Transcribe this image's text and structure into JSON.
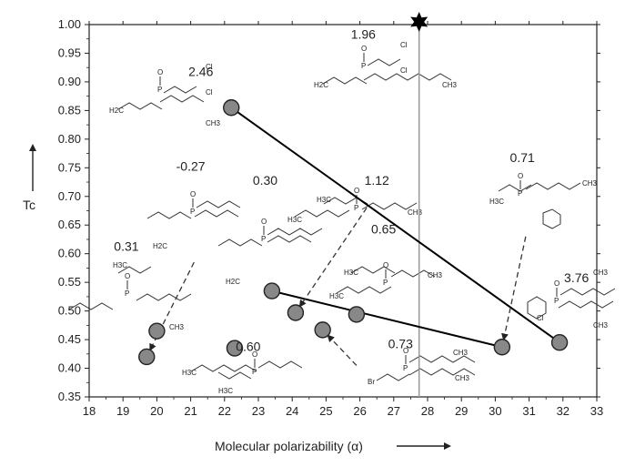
{
  "chart_data": {
    "type": "scatter",
    "xlabel": "Molecular polarizability (α)",
    "ylabel": "Tc",
    "xlim": [
      18,
      33
    ],
    "ylim": [
      0.35,
      1.0
    ],
    "xticks": [
      18,
      19,
      20,
      21,
      22,
      23,
      24,
      25,
      26,
      27,
      28,
      29,
      30,
      31,
      32,
      33
    ],
    "yticks": [
      0.35,
      0.4,
      0.45,
      0.5,
      0.55,
      0.6,
      0.65,
      0.7,
      0.75,
      0.8,
      0.85,
      0.9,
      0.95,
      1.0
    ],
    "points": [
      {
        "x": 22.2,
        "y": 0.855
      },
      {
        "x": 20.0,
        "y": 0.465
      },
      {
        "x": 19.7,
        "y": 0.42
      },
      {
        "x": 22.3,
        "y": 0.435
      },
      {
        "x": 23.4,
        "y": 0.535
      },
      {
        "x": 24.1,
        "y": 0.497
      },
      {
        "x": 24.9,
        "y": 0.467
      },
      {
        "x": 25.9,
        "y": 0.494
      },
      {
        "x": 30.2,
        "y": 0.437
      },
      {
        "x": 31.9,
        "y": 0.445
      }
    ],
    "lines": [
      {
        "from": [
          22.2,
          0.855
        ],
        "to": [
          31.9,
          0.445
        ]
      },
      {
        "from": [
          23.4,
          0.535
        ],
        "to": [
          30.2,
          0.437
        ]
      }
    ],
    "reference_line": {
      "x": 27.75
    },
    "star": {
      "x": 27.75,
      "y": 1.0
    },
    "dashed_arrows": [
      {
        "from": [
          21.1,
          0.585
        ],
        "to": [
          19.7,
          0.42
        ]
      },
      {
        "from": [
          26.2,
          0.68
        ],
        "to": [
          24.1,
          0.497
        ]
      },
      {
        "from": [
          25.9,
          0.405
        ],
        "to": [
          24.9,
          0.467
        ]
      },
      {
        "from": [
          30.9,
          0.63
        ],
        "to": [
          30.2,
          0.437
        ]
      }
    ],
    "value_labels": [
      {
        "text": "2.46",
        "x": 21.3,
        "y": 0.91
      },
      {
        "text": "1.96",
        "x": 26.1,
        "y": 0.975
      },
      {
        "text": "-0.27",
        "x": 21.0,
        "y": 0.745
      },
      {
        "text": "0.30",
        "x": 23.2,
        "y": 0.72
      },
      {
        "text": "1.12",
        "x": 26.5,
        "y": 0.72
      },
      {
        "text": "0.71",
        "x": 30.8,
        "y": 0.76
      },
      {
        "text": "0.31",
        "x": 19.1,
        "y": 0.605
      },
      {
        "text": "0.65",
        "x": 26.7,
        "y": 0.635
      },
      {
        "text": "3.76",
        "x": 32.4,
        "y": 0.55
      },
      {
        "text": "0.60",
        "x": 22.7,
        "y": 0.43
      },
      {
        "text": "0.73",
        "x": 27.2,
        "y": 0.435
      }
    ]
  },
  "structure_labels": {
    "cl": "Cl",
    "br": "Br",
    "o": "O",
    "p": "P",
    "h2c": "H2C",
    "ch3": "CH3",
    "h3c": "H3C"
  }
}
